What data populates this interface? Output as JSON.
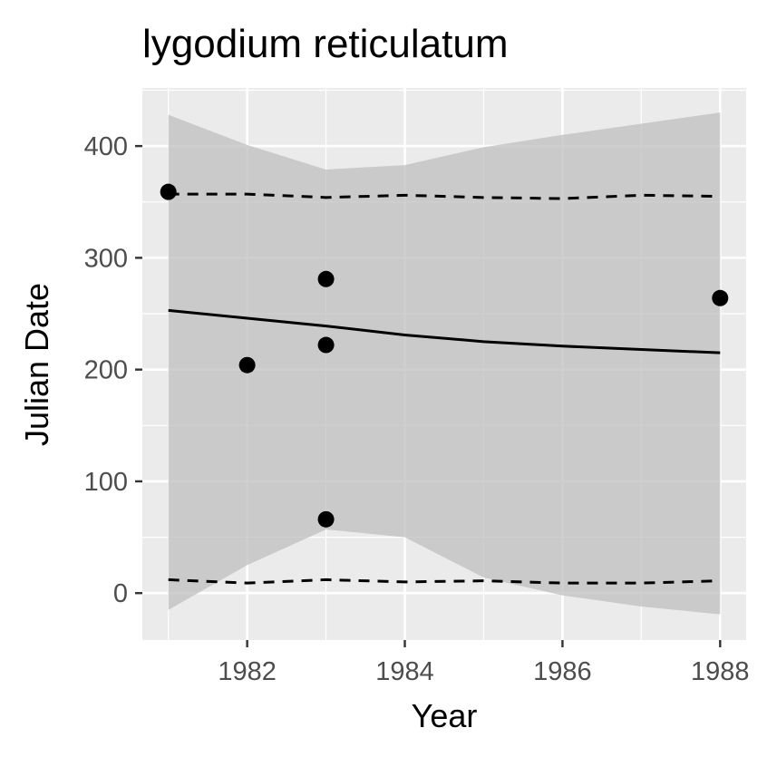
{
  "chart_data": {
    "type": "scatter",
    "title": "lygodium reticulatum",
    "xlabel": "Year",
    "ylabel": "Julian Date",
    "xlim": [
      1980.67,
      1988.33
    ],
    "ylim": [
      -42,
      452
    ],
    "x_ticks": [
      1982,
      1984,
      1986,
      1988
    ],
    "y_ticks": [
      0,
      100,
      200,
      300,
      400
    ],
    "grid": true,
    "legend": "none",
    "points": [
      {
        "x": 1981,
        "y": 359
      },
      {
        "x": 1982,
        "y": 204
      },
      {
        "x": 1983,
        "y": 281
      },
      {
        "x": 1983,
        "y": 222
      },
      {
        "x": 1983,
        "y": 66
      },
      {
        "x": 1988,
        "y": 264
      }
    ],
    "fit_line": {
      "x": [
        1981,
        1982,
        1983,
        1984,
        1985,
        1986,
        1987,
        1988
      ],
      "y": [
        253,
        246,
        239,
        231,
        225,
        221,
        218,
        215
      ]
    },
    "upper_dashed": {
      "x": [
        1981,
        1982,
        1983,
        1984,
        1985,
        1986,
        1987,
        1988
      ],
      "y": [
        357,
        357,
        354,
        356,
        354,
        353,
        356,
        355
      ]
    },
    "lower_dashed": {
      "x": [
        1981,
        1982,
        1983,
        1984,
        1985,
        1986,
        1987,
        1988
      ],
      "y": [
        12,
        9,
        12,
        10,
        11,
        9,
        9,
        11
      ]
    },
    "band": {
      "x": [
        1981,
        1982,
        1983,
        1984,
        1985,
        1986,
        1987,
        1988
      ],
      "upper": [
        428,
        401,
        379,
        383,
        399,
        410,
        420,
        430
      ],
      "lower": [
        -15,
        25,
        57,
        50,
        14,
        -2,
        -12,
        -19
      ]
    },
    "colors": {
      "panel": "#ebebeb",
      "grid": "#ffffff",
      "band": "#bdbdbd",
      "points": "#000000",
      "lines": "#000000"
    }
  }
}
